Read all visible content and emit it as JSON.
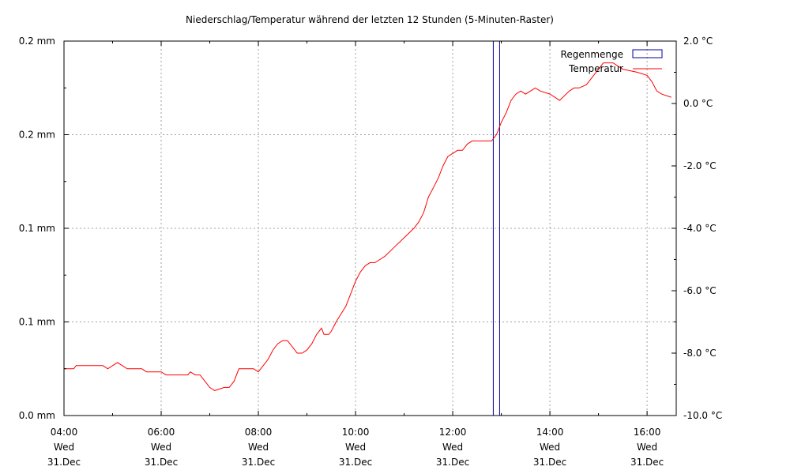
{
  "chart_data": {
    "type": "line",
    "title": "Niederschlag/Temperatur während der letzten 12 Stunden (5-Minuten-Raster)",
    "x_tick_labels": [
      {
        "x": 4,
        "lines": [
          "04:00",
          "Wed",
          "31.Dec"
        ]
      },
      {
        "x": 6,
        "lines": [
          "06:00",
          "Wed",
          "31.Dec"
        ]
      },
      {
        "x": 8,
        "lines": [
          "08:00",
          "Wed",
          "31.Dec"
        ]
      },
      {
        "x": 10,
        "lines": [
          "10:00",
          "Wed",
          "31.Dec"
        ]
      },
      {
        "x": 12,
        "lines": [
          "12:00",
          "Wed",
          "31.Dec"
        ]
      },
      {
        "x": 14,
        "lines": [
          "14:00",
          "Wed",
          "31.Dec"
        ]
      },
      {
        "x": 16,
        "lines": [
          "16:00",
          "Wed",
          "31.Dec"
        ]
      }
    ],
    "xlim": [
      4,
      16.6
    ],
    "y_left": {
      "ylim": [
        0,
        0.2
      ],
      "tick_labels": [
        "0.0 mm",
        "0.1 mm",
        "0.1 mm",
        "0.2 mm",
        "0.2 mm"
      ],
      "tick_values": [
        0,
        0.05,
        0.1,
        0.15,
        0.2
      ]
    },
    "y_right": {
      "ylim": [
        -10,
        2
      ],
      "tick_labels": [
        "-10.0 °C",
        "-8.0 °C",
        "-6.0 °C",
        "-4.0 °C",
        "-2.0 °C",
        "0.0 °C",
        "2.0 °C"
      ],
      "tick_values": [
        -10,
        -8,
        -6,
        -4,
        -2,
        0,
        2
      ]
    },
    "grid": true,
    "legend_position": "top-right",
    "series": [
      {
        "name": "Regenmenge",
        "type": "bar",
        "axis": "left",
        "color": "#0000a0",
        "x": [
          12.9
        ],
        "values": [
          0.2
        ]
      },
      {
        "name": "Temperatur",
        "type": "line",
        "axis": "right",
        "color": "#ff0000",
        "x": [
          4.0,
          4.2,
          4.25,
          4.5,
          4.8,
          4.9,
          5.0,
          5.1,
          5.2,
          5.3,
          5.6,
          5.7,
          6.0,
          6.1,
          6.2,
          6.5,
          6.55,
          6.6,
          6.7,
          6.8,
          6.9,
          7.0,
          7.1,
          7.3,
          7.4,
          7.5,
          7.6,
          7.9,
          8.0,
          8.1,
          8.2,
          8.3,
          8.4,
          8.5,
          8.6,
          8.7,
          8.8,
          8.9,
          9.0,
          9.1,
          9.2,
          9.3,
          9.35,
          9.45,
          9.5,
          9.6,
          9.8,
          9.9,
          10.0,
          10.1,
          10.2,
          10.3,
          10.4,
          10.5,
          10.6,
          10.8,
          11.0,
          11.2,
          11.3,
          11.4,
          11.5,
          11.6,
          11.7,
          11.8,
          11.9,
          12.0,
          12.1,
          12.2,
          12.3,
          12.4,
          12.5,
          12.6,
          12.8,
          12.9,
          13.0,
          13.1,
          13.2,
          13.3,
          13.4,
          13.5,
          13.6,
          13.7,
          13.8,
          14.0,
          14.2,
          14.4,
          14.5,
          14.6,
          14.75,
          14.85,
          15.0,
          15.1,
          15.3,
          15.5,
          15.8,
          16.0,
          16.1,
          16.2,
          16.3,
          16.5
        ],
        "values": [
          -8.5,
          -8.5,
          -8.4,
          -8.4,
          -8.4,
          -8.5,
          -8.4,
          -8.3,
          -8.4,
          -8.5,
          -8.5,
          -8.6,
          -8.6,
          -8.7,
          -8.7,
          -8.7,
          -8.7,
          -8.6,
          -8.7,
          -8.7,
          -8.9,
          -9.1,
          -9.2,
          -9.1,
          -9.1,
          -8.9,
          -8.5,
          -8.5,
          -8.6,
          -8.4,
          -8.2,
          -7.9,
          -7.7,
          -7.6,
          -7.6,
          -7.8,
          -8.0,
          -8.0,
          -7.9,
          -7.7,
          -7.4,
          -7.2,
          -7.4,
          -7.4,
          -7.3,
          -7.0,
          -6.5,
          -6.1,
          -5.7,
          -5.4,
          -5.2,
          -5.1,
          -5.1,
          -5.0,
          -4.9,
          -4.6,
          -4.3,
          -4.0,
          -3.8,
          -3.5,
          -3.0,
          -2.7,
          -2.4,
          -2.0,
          -1.7,
          -1.6,
          -1.5,
          -1.5,
          -1.3,
          -1.2,
          -1.2,
          -1.2,
          -1.2,
          -1.0,
          -0.6,
          -0.3,
          0.1,
          0.3,
          0.4,
          0.3,
          0.4,
          0.5,
          0.4,
          0.3,
          0.1,
          0.4,
          0.5,
          0.5,
          0.6,
          0.8,
          1.1,
          1.3,
          1.3,
          1.1,
          1.0,
          0.9,
          0.7,
          0.4,
          0.3,
          0.2
        ]
      }
    ]
  }
}
